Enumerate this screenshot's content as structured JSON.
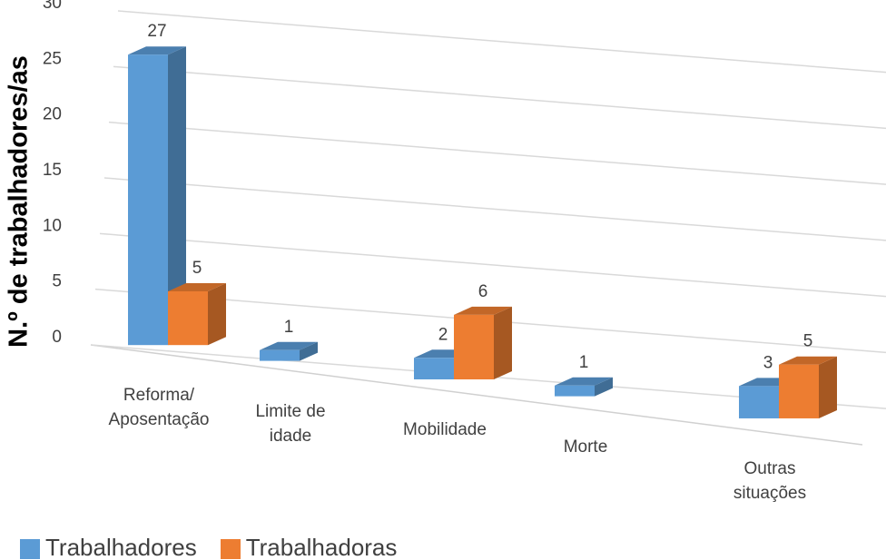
{
  "chart_data": {
    "type": "bar3d",
    "y_axis_label": "N.º de trabalhadores/as",
    "categories": [
      "Reforma/ Aposentação",
      "Limite de idade",
      "Mobilidade",
      "Morte",
      "Outras situações"
    ],
    "series": [
      {
        "name": "Trabalhadores",
        "color": "#5b9bd5",
        "values": [
          27,
          1,
          2,
          1,
          3
        ]
      },
      {
        "name": "Trabalhadoras",
        "color": "#ed7d31",
        "values": [
          5,
          null,
          6,
          null,
          5
        ]
      }
    ],
    "ylim": [
      0,
      30
    ],
    "yticks": [
      0,
      5,
      10,
      15,
      20,
      25,
      30
    ],
    "grid": true,
    "legend": "bottom"
  }
}
